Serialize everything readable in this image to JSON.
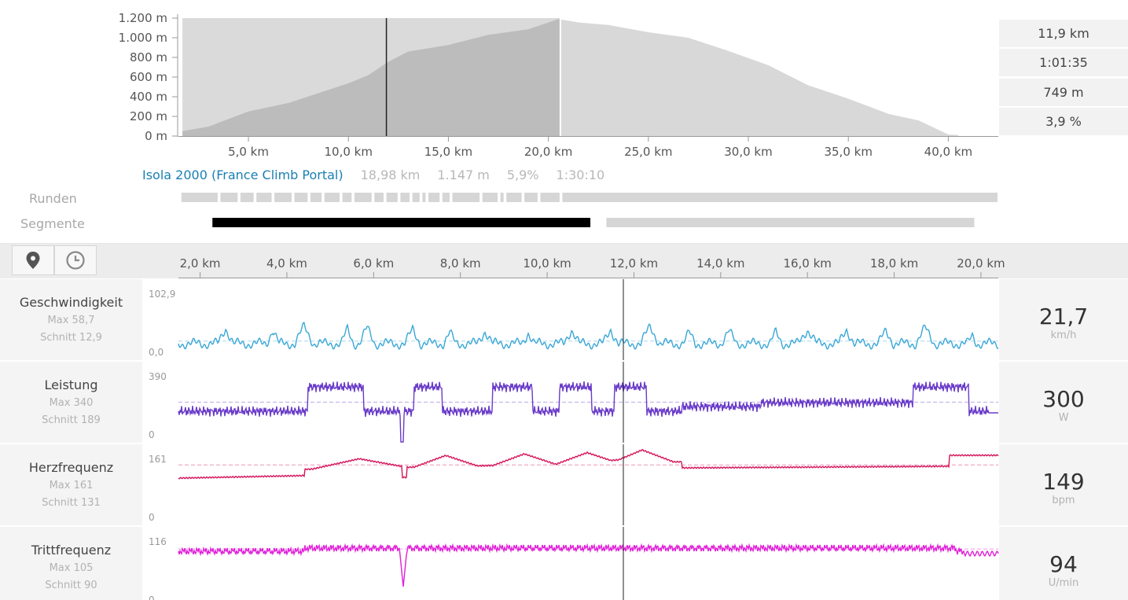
{
  "overview": {
    "y_ticks": [
      "1.200 m",
      "1.000 m",
      "800 m",
      "600 m",
      "400 m",
      "200 m",
      "0 m"
    ],
    "x_ticks": [
      "5,0 km",
      "10,0 km",
      "15,0 km",
      "20,0 km",
      "25,0 km",
      "30,0 km",
      "35,0 km",
      "40,0 km"
    ],
    "stats": [
      "11,9 km",
      "1:01:35",
      "749 m",
      "3,9 %"
    ]
  },
  "segment": {
    "name": "Isola 2000 (France Climb Portal)",
    "distance": "18,98 km",
    "elevation": "1.147 m",
    "grade": "5,9%",
    "time": "1:30:10"
  },
  "rows": {
    "laps": "Runden",
    "segments": "Segmente"
  },
  "toolbar": {
    "map_icon": "map-pin-icon",
    "time_icon": "clock-icon"
  },
  "axis": {
    "ticks": [
      "2,0 km",
      "4,0 km",
      "6,0 km",
      "8,0 km",
      "10,0 km",
      "12,0 km",
      "14,0 km",
      "16,0 km",
      "18,0 km",
      "20,0 km"
    ]
  },
  "metrics": [
    {
      "id": "speed",
      "title": "Geschwindigkeit",
      "max": "Max 58,7",
      "avg": "Schnitt 12,9",
      "value": "21,7",
      "unit": "km/h",
      "y_max": "102,9",
      "y_min": "0,0",
      "color": "#3aa7d6"
    },
    {
      "id": "power",
      "title": "Leistung",
      "max": "Max 340",
      "avg": "Schnitt 189",
      "value": "300",
      "unit": "W",
      "y_max": "390",
      "y_min": "0",
      "color": "#6a3cc9"
    },
    {
      "id": "hr",
      "title": "Herzfrequenz",
      "max": "Max 161",
      "avg": "Schnitt 131",
      "value": "149",
      "unit": "bpm",
      "y_max": "161",
      "y_min": "0",
      "color": "#d4145a"
    },
    {
      "id": "cadence",
      "title": "Trittfrequenz",
      "max": "Max 105",
      "avg": "Schnitt 90",
      "value": "94",
      "unit": "U/min",
      "y_max": "116",
      "y_min": "0",
      "color": "#e020d8"
    }
  ],
  "chart_data": [
    {
      "type": "area",
      "ylabel": "",
      "xlabel": "",
      "x_unit": "km",
      "y_unit": "m",
      "ylim": [
        0,
        1200
      ],
      "xlim": [
        1.5,
        42.5
      ],
      "x": [
        1.7,
        3,
        5,
        7,
        9,
        10,
        11,
        12,
        13,
        15,
        17,
        19,
        20.5,
        21.5,
        23,
        25,
        27,
        29,
        31,
        33,
        35,
        37,
        38.5,
        40,
        40.5
      ],
      "values": [
        50,
        120,
        250,
        360,
        470,
        560,
        620,
        780,
        860,
        950,
        1030,
        1110,
        1190,
        1180,
        1130,
        1080,
        1000,
        890,
        720,
        540,
        380,
        250,
        160,
        40,
        10
      ],
      "highlight_range_km": [
        1.7,
        20.6
      ],
      "cursor_km": 11.9
    }
  ]
}
